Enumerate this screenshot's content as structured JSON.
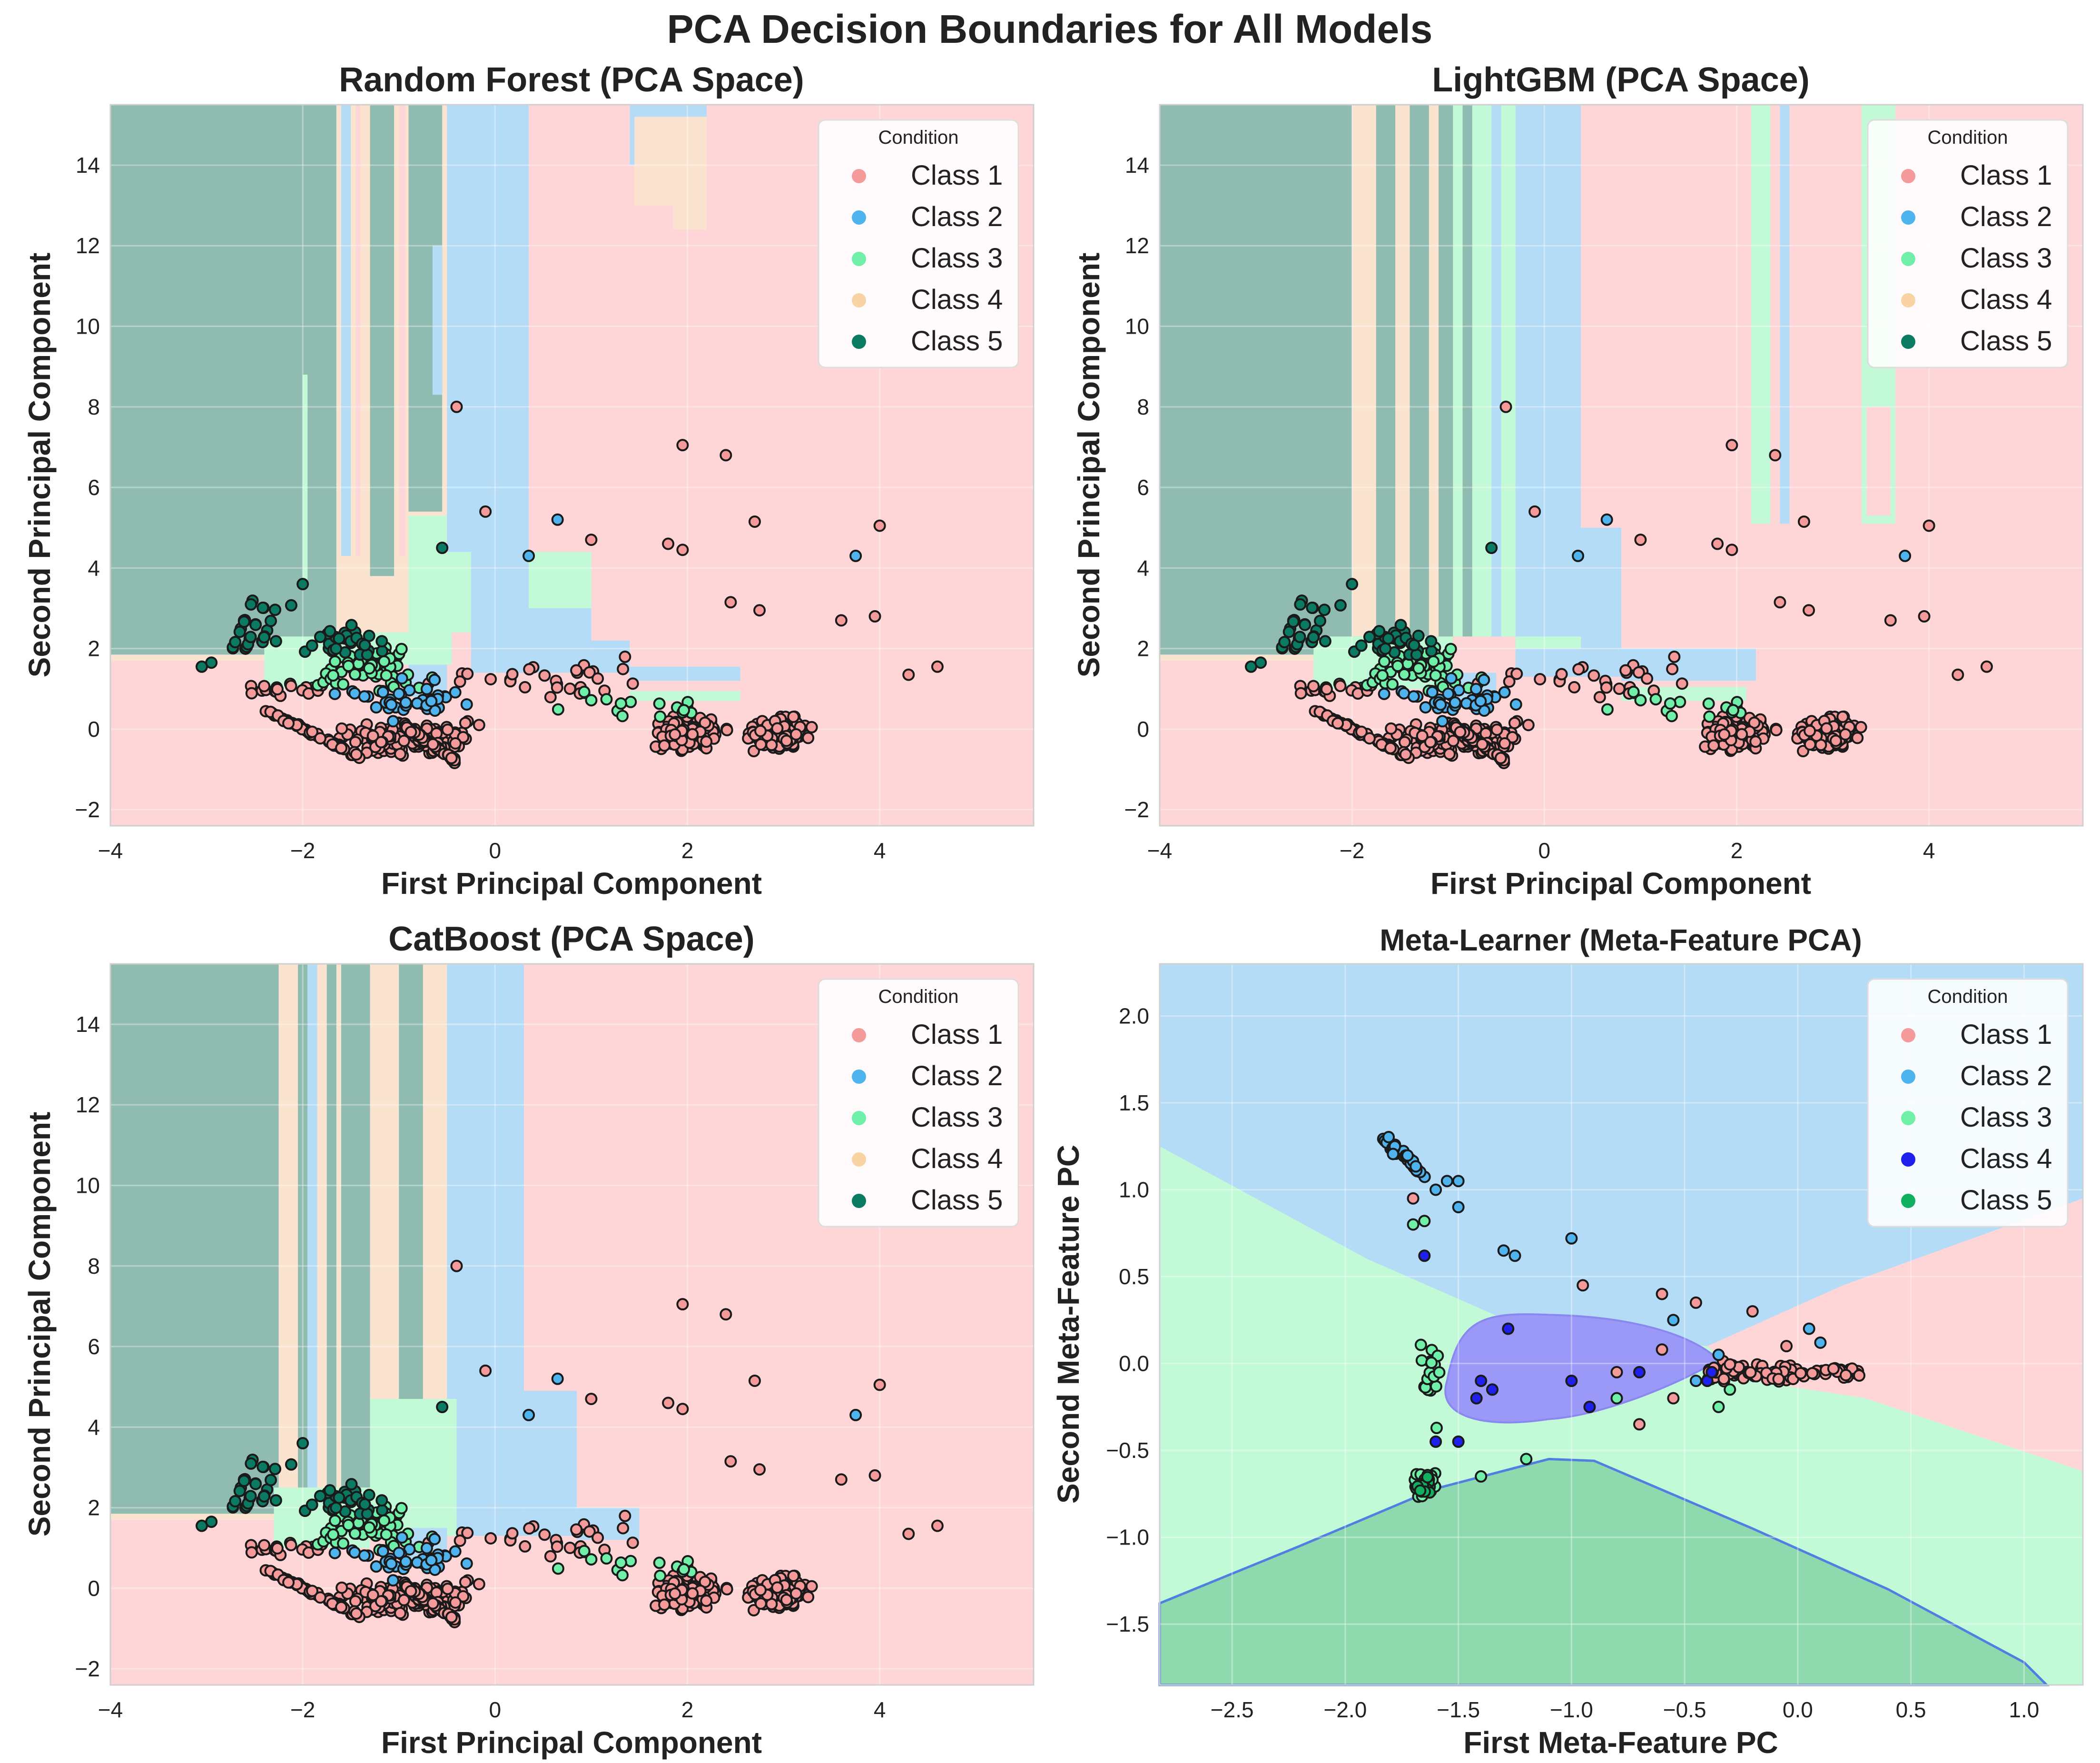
{
  "figure": {
    "title": "PCA Decision Boundaries for All Models"
  },
  "legend_title": "Condition",
  "class_colors": {
    "Class 1": "#f59a9a",
    "Class 2": "#4fb3ee",
    "Class 3": "#6fefa8",
    "Class 4": "#f9d3a4",
    "Class 5": "#0b7a62"
  },
  "meta_class_colors": {
    "Class 1": "#f59a9a",
    "Class 2": "#4fb3ee",
    "Class 3": "#6fefa8",
    "Class 4": "#2020ee",
    "Class 5": "#10b060"
  },
  "region_colors": {
    "Class 1": "#ffd6d8",
    "Class 2": "#b5dcf7",
    "Class 3": "#c2f9d7",
    "Class 4": "#fbe4cf",
    "Class 5": "#8fbbb0"
  },
  "meta_region_colors": {
    "Class 1": "#ffd6d8",
    "Class 2": "#b5dcf7",
    "Class 3": "#c2f9d7",
    "Class 4": "#9a99f7",
    "Class 5": "#8fd9af"
  },
  "chart_data": [
    {
      "type": "scatter",
      "title": "Random Forest (PCA Space)",
      "xlabel": "First Principal Component",
      "ylabel": "Second Principal Component",
      "xlim": [
        -4,
        5.6
      ],
      "ylim": [
        -2.4,
        15.5
      ],
      "xticks": [
        -4,
        -2,
        0,
        2,
        4
      ],
      "xtick_labels": [
        "−4",
        "−2",
        "0",
        "2",
        "4"
      ],
      "yticks": [
        -2,
        0,
        2,
        4,
        6,
        8,
        10,
        12,
        14
      ],
      "ytick_labels": [
        "−2",
        "0",
        "2",
        "4",
        "6",
        "8",
        "10",
        "12",
        "14"
      ],
      "legend": [
        "Class 1",
        "Class 2",
        "Class 3",
        "Class 4",
        "Class 5"
      ],
      "legend_position": "top-right"
    },
    {
      "type": "scatter",
      "title": "LightGBM (PCA Space)",
      "xlabel": "First Principal Component",
      "ylabel": "Second Principal Component",
      "xlim": [
        -4,
        5.6
      ],
      "ylim": [
        -2.4,
        15.5
      ],
      "xticks": [
        -4,
        -2,
        0,
        2,
        4
      ],
      "xtick_labels": [
        "−4",
        "−2",
        "0",
        "2",
        "4"
      ],
      "yticks": [
        -2,
        0,
        2,
        4,
        6,
        8,
        10,
        12,
        14
      ],
      "ytick_labels": [
        "−2",
        "0",
        "2",
        "4",
        "6",
        "8",
        "10",
        "12",
        "14"
      ],
      "legend": [
        "Class 1",
        "Class 2",
        "Class 3",
        "Class 4",
        "Class 5"
      ],
      "legend_position": "top-right"
    },
    {
      "type": "scatter",
      "title": "CatBoost (PCA Space)",
      "xlabel": "First Principal Component",
      "ylabel": "Second Principal Component",
      "xlim": [
        -4,
        5.6
      ],
      "ylim": [
        -2.4,
        15.5
      ],
      "xticks": [
        -4,
        -2,
        0,
        2,
        4
      ],
      "xtick_labels": [
        "−4",
        "−2",
        "0",
        "2",
        "4"
      ],
      "yticks": [
        -2,
        0,
        2,
        4,
        6,
        8,
        10,
        12,
        14
      ],
      "ytick_labels": [
        "−2",
        "0",
        "2",
        "4",
        "6",
        "8",
        "10",
        "12",
        "14"
      ],
      "legend": [
        "Class 1",
        "Class 2",
        "Class 3",
        "Class 4",
        "Class 5"
      ],
      "legend_position": "top-right"
    },
    {
      "type": "scatter",
      "title": "Meta-Learner (Meta-Feature PCA)",
      "xlabel": "First Meta-Feature PC",
      "ylabel": "Second Meta-Feature PC",
      "xlim": [
        -2.82,
        1.26
      ],
      "ylim": [
        -1.85,
        2.3
      ],
      "xticks": [
        -2.5,
        -2.0,
        -1.5,
        -1.0,
        -0.5,
        0.0,
        0.5,
        1.0
      ],
      "xtick_labels": [
        "−2.5",
        "−2.0",
        "−1.5",
        "−1.0",
        "−0.5",
        "0.0",
        "0.5",
        "1.0"
      ],
      "yticks": [
        -1.5,
        -1.0,
        -0.5,
        0.0,
        0.5,
        1.0,
        1.5,
        2.0
      ],
      "ytick_labels": [
        "−1.5",
        "−1.0",
        "−0.5",
        "0.0",
        "0.5",
        "1.0",
        "1.5",
        "2.0"
      ],
      "legend": [
        "Class 1",
        "Class 2",
        "Class 3",
        "Class 4",
        "Class 5"
      ],
      "legend_position": "top-right"
    }
  ]
}
